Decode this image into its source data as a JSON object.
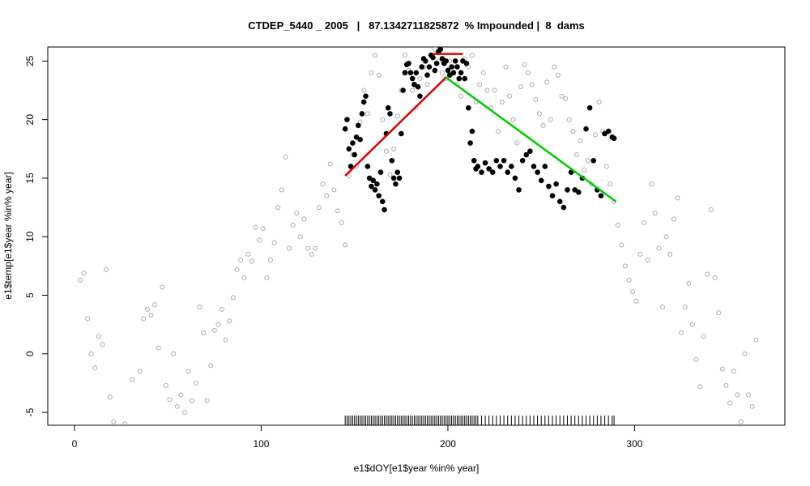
{
  "chart_data": {
    "type": "scatter",
    "title": "CTDEP_5440 _ 2005   |   87.1342711825872  % Impounded |  8  dams",
    "xlabel": "e1$dOY[e1$year %in% year]",
    "ylabel": "e1$temp[e1$year %in% year]",
    "xlim": [
      -14.3,
      380.5
    ],
    "ylim": [
      -6.1,
      26.2
    ],
    "xticks": [
      0,
      100,
      200,
      300
    ],
    "yticks": [
      -5,
      0,
      5,
      10,
      15,
      20,
      25
    ],
    "series": [
      {
        "color": "#aaaaaa",
        "filled": false,
        "x": [
          3,
          5,
          7,
          9,
          11,
          13,
          15,
          17,
          19,
          21,
          27,
          31,
          35,
          37,
          39,
          41,
          43,
          45,
          47,
          49,
          51,
          53,
          55,
          57,
          59,
          61,
          63,
          65,
          67,
          69,
          71,
          73,
          75,
          77,
          79,
          81,
          83,
          85,
          87,
          89,
          91,
          93,
          95,
          97,
          99,
          101,
          103,
          105,
          107,
          109,
          111,
          113,
          115,
          117,
          119,
          121,
          123,
          125,
          127,
          129,
          131,
          133,
          135,
          137,
          139,
          141,
          143,
          145,
          147,
          149,
          151,
          153,
          155,
          157,
          159,
          161,
          163,
          165,
          167,
          169,
          171,
          173,
          175,
          177,
          179,
          181,
          183,
          185,
          187,
          189,
          191,
          193,
          195,
          197,
          199,
          201,
          203,
          205,
          207,
          209,
          211,
          213,
          215,
          217,
          219,
          221,
          223,
          225,
          227,
          229,
          231,
          233,
          235,
          237,
          239,
          241,
          243,
          245,
          247,
          249,
          251,
          253,
          255,
          257,
          259,
          261,
          263,
          265,
          267,
          269,
          271,
          273,
          275,
          277,
          279,
          281,
          283,
          285,
          287,
          289,
          291,
          293,
          295,
          297,
          299,
          301,
          303,
          305,
          307,
          309,
          311,
          313,
          315,
          317,
          319,
          321,
          323,
          325,
          327,
          329,
          331,
          333,
          335,
          337,
          339,
          341,
          343,
          345,
          347,
          349,
          351,
          353,
          355,
          357,
          359,
          361,
          363,
          365
        ],
        "values": [
          6.3,
          6.9,
          3,
          0,
          -1.2,
          1.5,
          0.8,
          7.2,
          -3.7,
          -5.8,
          -6,
          -2.2,
          -1.5,
          3,
          3.8,
          3.3,
          4.2,
          0.5,
          5.7,
          -2.7,
          -3.9,
          0,
          -4.5,
          -3.5,
          -5,
          -1.5,
          -4,
          -2.5,
          4,
          1.8,
          -4,
          -1,
          2,
          2.5,
          3.8,
          1.2,
          2.8,
          4.8,
          7.2,
          8,
          6.5,
          8.5,
          7.9,
          10.8,
          9.7,
          10.7,
          6.5,
          8,
          9.5,
          12.5,
          14,
          16.8,
          9,
          11,
          12,
          10,
          11.5,
          9,
          8.5,
          9,
          12.5,
          14.5,
          13.5,
          16.2,
          14,
          12.2,
          11.2,
          9.3,
          15.2,
          17,
          16,
          19.8,
          22.5,
          20.5,
          24,
          25.5,
          23.8,
          20,
          17.3,
          15.3,
          17.5,
          20.3,
          22.5,
          25.5,
          24.2,
          22.5,
          21,
          23.5,
          24.5,
          23,
          25.5,
          26,
          25,
          24,
          23.5,
          25,
          24,
          23,
          22,
          25.2,
          24.5,
          25.5,
          21.5,
          23,
          24,
          22.5,
          21,
          22.5,
          19,
          21.5,
          24.5,
          22,
          20,
          18,
          22.8,
          24.7,
          24,
          23,
          21.7,
          20.5,
          19.5,
          23.2,
          20,
          24.5,
          23.8,
          22,
          21.8,
          20,
          19,
          17,
          18.2,
          15.7,
          16.5,
          14.5,
          18.7,
          21.5,
          19,
          16,
          14.5,
          13,
          11,
          9.3,
          7.5,
          6.3,
          5.3,
          4.5,
          8.5,
          11.2,
          8,
          14.5,
          12,
          9,
          4,
          10,
          8.5,
          11.5,
          13.3,
          1.8,
          4,
          6,
          2.5,
          -0.5,
          -2.8,
          1.5,
          6.8,
          12.3,
          6.5,
          3.5,
          -1.3,
          -2.7,
          -4.2,
          -1.5,
          -3.5,
          -5.8,
          0,
          -3.5,
          -4.5,
          1.2
        ]
      },
      {
        "color": "#000000",
        "filled": true,
        "x": [
          145,
          146,
          147,
          148,
          149,
          150,
          151,
          152,
          153,
          154,
          155,
          156,
          157,
          158,
          159,
          160,
          161,
          162,
          163,
          164,
          165,
          166,
          167,
          168,
          169,
          170,
          171,
          172,
          173,
          174,
          175,
          176,
          177,
          178,
          179,
          180,
          181,
          182,
          183,
          184,
          185,
          186,
          187,
          188,
          189,
          190,
          191,
          192,
          193,
          194,
          195,
          196,
          197,
          198,
          199,
          200,
          201,
          202,
          203,
          204,
          205,
          206,
          207,
          208,
          209,
          210,
          211,
          212,
          213,
          214,
          215,
          216,
          218,
          220,
          222,
          224,
          226,
          228,
          230,
          232,
          234,
          236,
          238,
          240,
          242,
          244,
          246,
          248,
          250,
          252,
          254,
          256,
          258,
          260,
          262,
          264,
          266,
          268,
          270,
          272,
          274,
          276,
          278,
          280,
          282,
          284,
          286,
          288,
          289
        ],
        "values": [
          19.2,
          20,
          17.5,
          16,
          18,
          17,
          18.5,
          19.5,
          18.3,
          20.5,
          21.5,
          22,
          16,
          15,
          14.3,
          14.8,
          14,
          14.5,
          13.5,
          15.5,
          13,
          12.3,
          18.8,
          21,
          20.5,
          16.5,
          15,
          14.5,
          15.5,
          15,
          18.8,
          22.5,
          24,
          24.7,
          24.8,
          24,
          23.5,
          23,
          24,
          22.8,
          22,
          24.5,
          25.2,
          25,
          23.8,
          24.5,
          25.5,
          25.3,
          24.2,
          24.8,
          25.8,
          26,
          25.2,
          24.8,
          25,
          24.2,
          23.8,
          24.5,
          24,
          25,
          24.5,
          23.5,
          24,
          25,
          23.5,
          24.8,
          21,
          18,
          19,
          16.5,
          15.8,
          16,
          15.5,
          16.3,
          15.8,
          15.5,
          16.5,
          16,
          16.5,
          15.5,
          16,
          15,
          14,
          16.5,
          17,
          17.3,
          16,
          15.5,
          14.8,
          16,
          14.3,
          13.5,
          14.5,
          13,
          12.5,
          14,
          15.5,
          14,
          13.8,
          15,
          19.2,
          21,
          16.5,
          14,
          13.5,
          18.8,
          19,
          18.5,
          18.4
        ]
      }
    ],
    "lines": [
      {
        "color": "#dd0000",
        "x": [
          145,
          199
        ],
        "values": [
          15.2,
          23.6
        ]
      },
      {
        "color": "#00cc00",
        "x": [
          199,
          290
        ],
        "values": [
          23.6,
          13
        ]
      },
      {
        "color": "#dd0000",
        "x": [
          192,
          208
        ],
        "values": [
          25.6,
          25.6
        ]
      }
    ]
  }
}
